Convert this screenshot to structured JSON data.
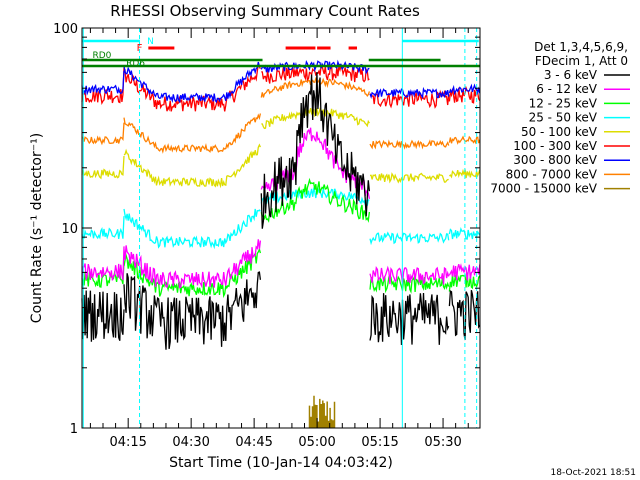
{
  "chart_data": {
    "type": "line",
    "title": "RHESSI Observing Summary Count Rates",
    "xlabel": "Start Time (10-Jan-14 04:03:42)",
    "ylabel": "Count Rate (s⁻¹ detector⁻¹)",
    "x_range_min": [
      4.0,
      38.8
    ],
    "y_scale": "log",
    "ylim": [
      1,
      100
    ],
    "x_ticks": [
      {
        "min": 15,
        "label": "04:15"
      },
      {
        "min": 30,
        "label": "04:30"
      },
      {
        "min": 45,
        "label": "04:45"
      },
      {
        "min": 60,
        "label": "05:00"
      },
      {
        "min": 75,
        "label": "05:15"
      },
      {
        "min": 90,
        "label": "05:30"
      }
    ],
    "y_tick_labels": [
      "1",
      "10",
      "100"
    ],
    "legend_header": [
      "Det 1,3,4,5,6,9,",
      "FDecim 1, Att 0"
    ],
    "legend_placement": "right",
    "series": [
      {
        "name": "3 - 6 keV",
        "color": "#000000"
      },
      {
        "name": "6 - 12 keV",
        "color": "#ff00ff"
      },
      {
        "name": "12 - 25 keV",
        "color": "#00ff00"
      },
      {
        "name": "25 - 50 keV",
        "color": "#00ffff"
      },
      {
        "name": "50 - 100 keV",
        "color": "#dddd00"
      },
      {
        "name": "100 - 300 keV",
        "color": "#ff0000"
      },
      {
        "name": "300 - 800 keV",
        "color": "#0000ff"
      },
      {
        "name": "800 - 7000 keV",
        "color": "#ff8000"
      },
      {
        "name": "7000 - 15000 keV",
        "color": "#a08000"
      }
    ],
    "flag_labels": {
      "saa": "N",
      "flare": "F",
      "rd0": "RD0",
      "rd6": "RD6"
    },
    "footer_timestamp": "18-Oct-2021 18:51"
  }
}
